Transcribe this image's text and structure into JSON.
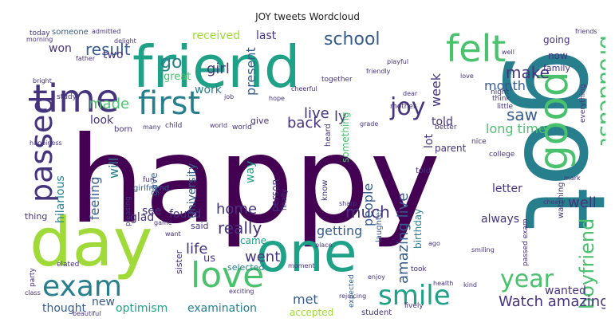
{
  "title": "JOY tweets Wordcloud",
  "palette": {
    "dark_purple": "#440154",
    "purple": "#46337e",
    "blue": "#365c8d",
    "steel": "#277f8e",
    "teal": "#1fa187",
    "green": "#4ac16d",
    "lime": "#a0da39",
    "yellow": "#d5e21a"
  },
  "words": [
    {
      "text": "happy"
    },
    {
      "text": "got"
    },
    {
      "text": "friend"
    },
    {
      "text": "day"
    },
    {
      "text": "one"
    },
    {
      "text": "love"
    },
    {
      "text": "time"
    },
    {
      "text": "felt"
    },
    {
      "text": "first"
    },
    {
      "text": "good"
    },
    {
      "text": "passed"
    },
    {
      "text": "joy"
    },
    {
      "text": "exam"
    },
    {
      "text": "smile"
    },
    {
      "text": "year"
    },
    {
      "text": "school"
    },
    {
      "text": "broadcast"
    },
    {
      "text": "boyfriend"
    },
    {
      "text": "result"
    },
    {
      "text": "Watch amazing"
    },
    {
      "text": "made"
    },
    {
      "text": "go"
    },
    {
      "text": "girl"
    },
    {
      "text": "work"
    },
    {
      "text": "well"
    },
    {
      "text": "really"
    },
    {
      "text": "home"
    },
    {
      "text": "life"
    },
    {
      "text": "went"
    },
    {
      "text": "make"
    },
    {
      "text": "saw"
    },
    {
      "text": "long time"
    },
    {
      "text": "feeling"
    },
    {
      "text": "much"
    },
    {
      "text": "received"
    },
    {
      "text": "last"
    },
    {
      "text": "present"
    },
    {
      "text": "live"
    },
    {
      "text": "back"
    },
    {
      "text": "lot"
    },
    {
      "text": "told"
    },
    {
      "text": "people"
    },
    {
      "text": "amazing live"
    },
    {
      "text": "getting"
    },
    {
      "text": "month"
    },
    {
      "text": "week"
    },
    {
      "text": "optimism"
    },
    {
      "text": "examination"
    },
    {
      "text": "thought"
    },
    {
      "text": "new"
    },
    {
      "text": "met"
    },
    {
      "text": "accepted"
    },
    {
      "text": "wanted"
    },
    {
      "text": "always"
    },
    {
      "text": "see"
    },
    {
      "text": "found"
    },
    {
      "text": "glad"
    },
    {
      "text": "will"
    },
    {
      "text": "university"
    },
    {
      "text": "look"
    },
    {
      "text": "hilarious"
    },
    {
      "text": "letter"
    },
    {
      "text": "birthday"
    },
    {
      "text": "ly"
    },
    {
      "text": "two"
    },
    {
      "text": "won"
    },
    {
      "text": "going"
    },
    {
      "text": "now"
    },
    {
      "text": "family"
    },
    {
      "text": "great"
    },
    {
      "text": "came"
    },
    {
      "text": "said"
    },
    {
      "text": "sister"
    },
    {
      "text": "us"
    },
    {
      "text": "selected"
    },
    {
      "text": "thing"
    },
    {
      "text": "gave"
    },
    {
      "text": "something"
    },
    {
      "text": "way"
    },
    {
      "text": "person"
    },
    {
      "text": "parent"
    },
    {
      "text": "give"
    },
    {
      "text": "born"
    },
    {
      "text": "today"
    },
    {
      "text": "someone"
    },
    {
      "text": "girlfriend"
    },
    {
      "text": "laughter"
    },
    {
      "text": "know"
    },
    {
      "text": "heard"
    },
    {
      "text": "college"
    },
    {
      "text": "together"
    },
    {
      "text": "nice"
    },
    {
      "text": "elated"
    },
    {
      "text": "party"
    },
    {
      "text": "student"
    },
    {
      "text": "took"
    },
    {
      "text": "expected"
    },
    {
      "text": "better"
    },
    {
      "text": "think"
    },
    {
      "text": "little"
    },
    {
      "text": "night"
    },
    {
      "text": "everything"
    },
    {
      "text": "passed exam"
    },
    {
      "text": "watching"
    },
    {
      "text": "pleasing"
    },
    {
      "text": "fun"
    },
    {
      "text": "child"
    },
    {
      "text": "grade"
    },
    {
      "text": "cheerful"
    },
    {
      "text": "mother"
    },
    {
      "text": "friendly"
    },
    {
      "text": "beautiful"
    },
    {
      "text": "delight"
    },
    {
      "text": "world"
    },
    {
      "text": "happiness"
    },
    {
      "text": "morning"
    },
    {
      "text": "bright"
    },
    {
      "text": "exciting"
    },
    {
      "text": "finally"
    },
    {
      "text": "health"
    },
    {
      "text": "kind"
    },
    {
      "text": "mark"
    },
    {
      "text": "game"
    },
    {
      "text": "playful"
    },
    {
      "text": "class"
    },
    {
      "text": "rejoicing"
    },
    {
      "text": "told"
    },
    {
      "text": "smiling"
    },
    {
      "text": "cheery"
    },
    {
      "text": "study"
    },
    {
      "text": "hope"
    },
    {
      "text": "lively"
    },
    {
      "text": "admitted"
    },
    {
      "text": "job"
    },
    {
      "text": "sharp"
    },
    {
      "text": "world"
    },
    {
      "text": "want"
    },
    {
      "text": "many"
    },
    {
      "text": "father"
    },
    {
      "text": "dear"
    },
    {
      "text": "well"
    },
    {
      "text": "love"
    },
    {
      "text": "enjoy"
    },
    {
      "text": "place"
    },
    {
      "text": "moment"
    },
    {
      "text": "ago"
    },
    {
      "text": "friends"
    }
  ]
}
